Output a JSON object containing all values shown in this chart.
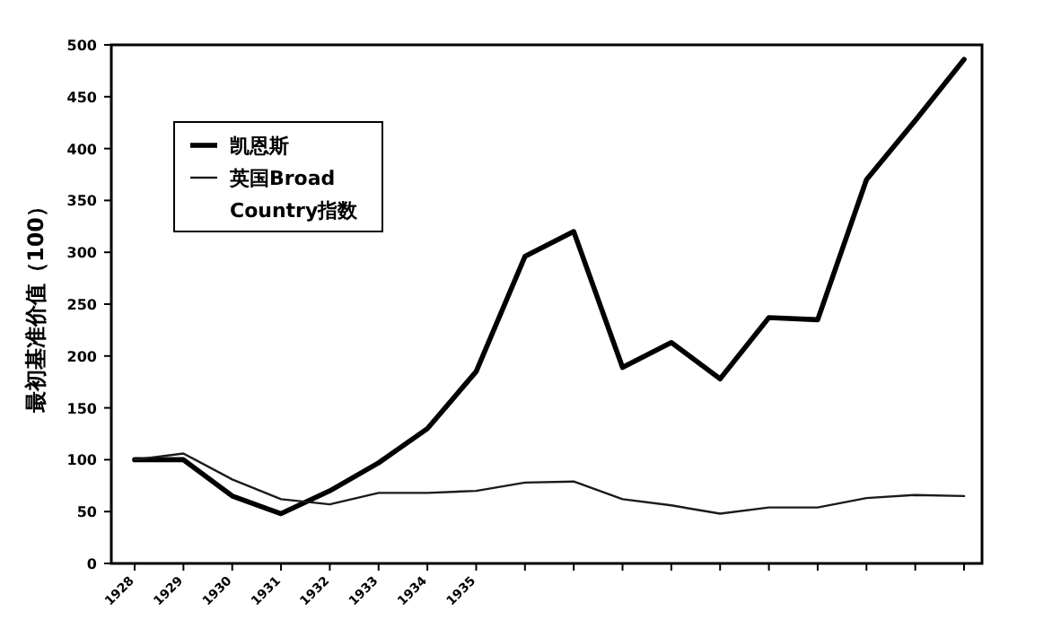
{
  "chart_data": {
    "type": "line",
    "ylabel": "最初基准价值（100）",
    "categories": [
      "1928",
      "1929",
      "1930",
      "1931",
      "1932",
      "1933",
      "1934",
      "1935",
      null,
      null,
      null,
      null,
      null,
      null,
      null,
      null,
      null,
      null
    ],
    "series": [
      {
        "name": "凯恩斯",
        "color": "#000000",
        "values": [
          100,
          100,
          65,
          48,
          70,
          97,
          130,
          185,
          296,
          320,
          189,
          213,
          178,
          237,
          235,
          370,
          427,
          486
        ]
      },
      {
        "name": "英国Broad Country指数",
        "color": "#1a1a1a",
        "values": [
          100,
          106,
          81,
          62,
          57,
          68,
          68,
          70,
          78,
          79,
          62,
          56,
          48,
          54,
          54,
          63,
          66,
          65
        ]
      }
    ],
    "ylim": [
      0,
      500
    ],
    "yticks": [
      0,
      50,
      100,
      150,
      200,
      250,
      300,
      350,
      400,
      450,
      500
    ],
    "legend": "top left",
    "marker": "none",
    "line_style": "solid",
    "grid": false
  }
}
